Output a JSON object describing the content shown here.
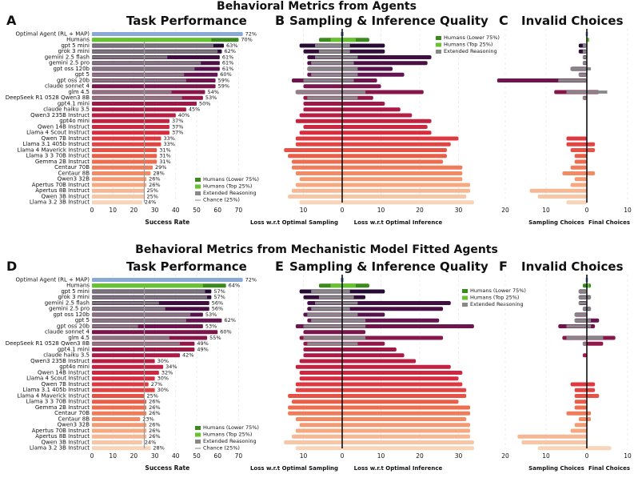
{
  "section_titles": [
    "Behavioral Metrics from Agents",
    "Behavioral Metrics from Mechanistic Model Fitted Agents"
  ],
  "panel_letters": [
    "A",
    "B",
    "C",
    "D",
    "E",
    "F"
  ],
  "panel_titles": {
    "task": "Task Performance",
    "sampling": "Sampling & Inference Quality",
    "invalid": "Invalid Choices"
  },
  "axis_labels": {
    "success": "Success Rate",
    "loss_sampling": "Loss w.r.t Optimal Sampling",
    "loss_inference": "Loss w.r.t Optimal Inference",
    "sampling_choices": "Sampling Choices",
    "final_choices": "Final Choices"
  },
  "legends": {
    "task": [
      "Humans (Lower 75%)",
      "Humans (Top 25%)",
      "Extended Reasoning",
      "Chance (25%)"
    ],
    "quality": [
      "Humans (Lower 75%)",
      "Humans (Top 25%)",
      "Extended Reasoning"
    ]
  },
  "colors": {
    "optimal": "#8aaad6",
    "humans_lower": "#3c8a1e",
    "humans_top": "#66c22e",
    "extended": "#888888",
    "chance": "#9a9a9a"
  },
  "chart_data": [
    {
      "type": "bar",
      "panel": "A",
      "title": "Task Performance",
      "xlabel": "Success Rate",
      "xlim": [
        0,
        72
      ],
      "xticks": [
        0,
        10,
        20,
        30,
        40,
        50,
        60,
        70
      ],
      "chance": 25,
      "categories": [
        "Optimal Agent (RL + MAP)",
        "Humans",
        "gpt 5 mini",
        "grok 3 mini",
        "gemini 2.5 flash",
        "gemini 2.5 pro",
        "gpt oss 120b",
        "gpt 5",
        "gpt oss 20b",
        "claude sonnet 4",
        "glm 4.5",
        "DeepSeek R1 0528 Qwen3 8B",
        "gpt4.1 mini",
        "claude haiku 3.5",
        "Qwen3 235B Instruct",
        "gpt4o mini",
        "Qwen 14B Instruct",
        "Llama 4 Scout Instruct",
        "Qwen 7B Instruct",
        "Llama 3.1 405b Instruct",
        "Llama 4 Maverick Instruct",
        "Llama 3 3 70B Instruct",
        "Gemma 2B Instruct",
        "Centaur 70B",
        "Centaur 8B",
        "Qwen3 32B",
        "Apertus 70B Instruct",
        "Apertus 8B Instruct",
        "Qwen 3B Instruct",
        "Llama 3.2 3B Instruct"
      ],
      "values": [
        72,
        70,
        63,
        62,
        61,
        61,
        61,
        60,
        59,
        59,
        54,
        53,
        50,
        45,
        40,
        37,
        37,
        37,
        33,
        33,
        31,
        31,
        31,
        29,
        28,
        26,
        26,
        25,
        25,
        24
      ],
      "extended_reasoning": [
        null,
        null,
        58,
        60,
        36,
        52,
        49,
        44,
        45,
        null,
        38,
        43,
        null,
        null,
        null,
        null,
        null,
        null,
        null,
        null,
        null,
        null,
        null,
        null,
        null,
        null,
        null,
        null,
        null,
        null
      ],
      "humans_lower": 57
    },
    {
      "type": "bar",
      "panel": "B",
      "title": "Sampling & Inference Quality",
      "xlabel_left": "Loss w.r.t Optimal Sampling",
      "xlabel_right": "Loss w.r.t Optimal Inference",
      "xticks_left": [
        10,
        0
      ],
      "xticks_right": [
        0,
        10,
        20,
        30
      ],
      "sampling_loss": [
        0,
        6,
        11,
        10,
        9,
        9,
        9,
        9,
        13,
        10,
        12,
        10,
        10,
        10,
        11,
        12,
        10,
        11,
        12,
        12,
        15,
        14,
        13,
        13,
        12,
        11,
        12,
        13,
        14,
        11
      ],
      "inference_loss": [
        0,
        7,
        11,
        11,
        23,
        22,
        13,
        16,
        9,
        10,
        21,
        8,
        11,
        15,
        18,
        23,
        22,
        23,
        30,
        28,
        27,
        27,
        26,
        31,
        31,
        31,
        33,
        33,
        32,
        34
      ],
      "extended_reasoning_sampling": [
        null,
        null,
        7,
        6,
        7,
        8,
        9,
        8,
        10,
        null,
        12,
        9,
        null,
        null,
        null,
        null,
        null,
        null,
        null,
        null,
        null,
        null,
        null,
        null,
        null,
        null,
        null,
        null,
        null,
        null
      ],
      "extended_reasoning_inference": [
        null,
        null,
        2,
        2,
        4,
        3,
        4,
        4,
        3,
        null,
        6,
        4,
        null,
        null,
        null,
        null,
        null,
        null,
        null,
        null,
        null,
        null,
        null,
        null,
        null,
        null,
        null,
        null,
        null,
        null
      ]
    },
    {
      "type": "bar",
      "panel": "C",
      "title": "Invalid Choices",
      "xlabel_left": "Sampling Choices",
      "xlabel_right": "Final Choices",
      "xticks_left": [
        20,
        10,
        0
      ],
      "xticks_right": [
        0,
        10
      ],
      "sampling_invalid": [
        0,
        0,
        2,
        2,
        1,
        1,
        4,
        2,
        22,
        0,
        8,
        1,
        0,
        0,
        0,
        0,
        0,
        0,
        5,
        5,
        4,
        3,
        3,
        4,
        6,
        3,
        4,
        14,
        12,
        5
      ],
      "final_invalid": [
        0,
        0,
        0,
        0,
        0,
        0,
        0,
        0,
        0,
        0,
        3,
        0,
        0,
        0,
        0,
        0,
        0,
        0,
        0,
        2,
        2,
        0,
        0,
        0,
        2,
        0,
        0,
        0,
        0,
        0
      ],
      "extended_reasoning_sampling": [
        null,
        null,
        1,
        1,
        1,
        1,
        4,
        2,
        7,
        null,
        5,
        1,
        null,
        null,
        null,
        null,
        null,
        null,
        null,
        null,
        null,
        null,
        null,
        null,
        null,
        null,
        null,
        null,
        null,
        null
      ],
      "extended_reasoning_final": [
        null,
        null,
        0,
        0,
        0,
        0,
        1,
        0,
        0,
        null,
        5,
        0,
        null,
        null,
        null,
        null,
        null,
        null,
        null,
        null,
        null,
        null,
        null,
        null,
        null,
        null,
        null,
        null,
        null,
        null
      ]
    },
    {
      "type": "bar",
      "panel": "D",
      "title": "Task Performance",
      "xlabel": "Success Rate",
      "xlim": [
        0,
        72
      ],
      "xticks": [
        0,
        10,
        20,
        30,
        40,
        50,
        60,
        70
      ],
      "chance": 25,
      "categories": [
        "Optimal Agent (RL + MAP)",
        "Humans",
        "gpt 5 mini",
        "grok 3 mini",
        "gemini 2.5 flash",
        "gemini 2.5 pro",
        "gpt oss 120b",
        "gpt 5",
        "gpt oss 20b",
        "claude sonnet 4",
        "glm 4.5",
        "DeepSeek R1 0528 Qwen3 8B",
        "gpt4.1 mini",
        "claude haiku 3.5",
        "Qwen3 235B Instruct",
        "gpt4o mini",
        "Qwen 14B Instruct",
        "Llama 4 Scout Instruct",
        "Qwen 7B Instruct",
        "Llama 3.1 405b Instruct",
        "Llama 4 Maverick Instruct",
        "Llama 3 3 70B Instruct",
        "Gemma 2B Instruct",
        "Centaur 70B",
        "Centaur 8B",
        "Qwen3 32B",
        "Apertus 70B Instruct",
        "Apertus 8B Instruct",
        "Qwen 3B Instruct",
        "Llama 3.2 3B Instruct"
      ],
      "values": [
        72,
        64,
        57,
        57,
        56,
        56,
        53,
        62,
        53,
        60,
        55,
        49,
        49,
        42,
        30,
        34,
        32,
        30,
        27,
        30,
        25,
        26,
        26,
        26,
        23,
        26,
        26,
        26,
        24,
        28
      ],
      "extended_reasoning": [
        null,
        null,
        54,
        55,
        32,
        35,
        47,
        45,
        22,
        null,
        37,
        42,
        null,
        null,
        null,
        null,
        null,
        null,
        null,
        null,
        null,
        null,
        null,
        null,
        null,
        null,
        null,
        null,
        null,
        null
      ],
      "humans_lower": 53
    },
    {
      "type": "bar",
      "panel": "E",
      "title": "Sampling & Inference Quality",
      "xlabel_left": "Loss w.r.t Optimal Sampling",
      "xlabel_right": "Loss w.r.t Optimal Inference",
      "xticks_left": [
        10,
        0
      ],
      "xticks_right": [
        0,
        10,
        20,
        30
      ],
      "sampling_loss": [
        0,
        6,
        11,
        10,
        9,
        9,
        10,
        9,
        12,
        10,
        11,
        10,
        10,
        10,
        11,
        12,
        11,
        11,
        12,
        12,
        14,
        13,
        14,
        14,
        12,
        11,
        12,
        13,
        15,
        12
      ],
      "inference_loss": [
        0,
        7,
        11,
        6,
        28,
        26,
        11,
        25,
        34,
        6,
        26,
        11,
        14,
        16,
        19,
        28,
        31,
        30,
        31,
        32,
        32,
        30,
        33,
        33,
        32,
        33,
        33,
        33,
        34,
        34
      ],
      "extended_reasoning_sampling": [
        null,
        null,
        8,
        6,
        7,
        8,
        9,
        8,
        10,
        null,
        10,
        9,
        null,
        null,
        null,
        null,
        null,
        null,
        null,
        null,
        null,
        null,
        null,
        null,
        null,
        null,
        null,
        null,
        null,
        null
      ],
      "extended_reasoning_inference": [
        null,
        null,
        2,
        3,
        4,
        2,
        4,
        6,
        6,
        null,
        6,
        4,
        null,
        null,
        null,
        null,
        null,
        null,
        null,
        null,
        null,
        null,
        null,
        null,
        null,
        null,
        null,
        null,
        null,
        null
      ]
    },
    {
      "type": "bar",
      "panel": "F",
      "title": "Invalid Choices",
      "xlabel_left": "Sampling Choices",
      "xlabel_right": "Final Choices",
      "xticks_left": [
        20,
        10,
        0
      ],
      "xticks_right": [
        0,
        10
      ],
      "sampling_invalid": [
        0,
        1,
        2,
        2,
        2,
        1,
        3,
        3,
        7,
        0,
        6,
        1,
        0,
        1,
        0,
        0,
        0,
        0,
        4,
        3,
        3,
        3,
        3,
        5,
        2,
        3,
        4,
        17,
        16,
        12
      ],
      "final_invalid": [
        0,
        1,
        0,
        1,
        0,
        1,
        0,
        3,
        2,
        0,
        7,
        4,
        0,
        0,
        0,
        0,
        0,
        0,
        2,
        2,
        3,
        0,
        0,
        1,
        1,
        0,
        0,
        0,
        0,
        6
      ],
      "extended_reasoning_sampling": [
        null,
        null,
        2,
        2,
        2,
        1,
        3,
        3,
        5,
        null,
        5,
        1,
        null,
        null,
        null,
        null,
        null,
        null,
        null,
        null,
        null,
        null,
        null,
        null,
        null,
        null,
        null,
        null,
        null,
        null
      ],
      "extended_reasoning_final": [
        null,
        null,
        0,
        1,
        0,
        1,
        0,
        1,
        1,
        null,
        4,
        0,
        null,
        null,
        null,
        null,
        null,
        null,
        null,
        null,
        null,
        null,
        null,
        null,
        null,
        null,
        null,
        null,
        null,
        null
      ]
    }
  ]
}
